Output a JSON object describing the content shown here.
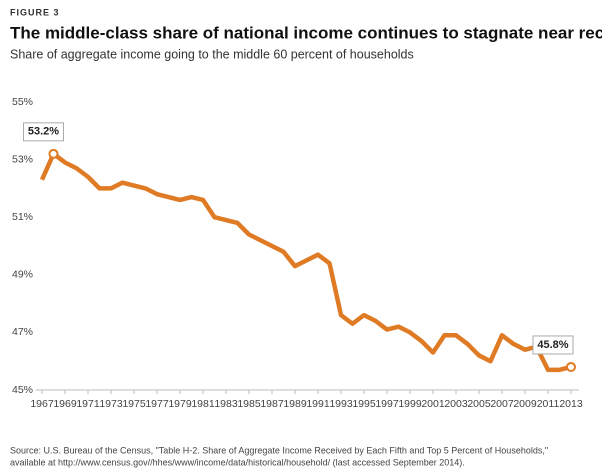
{
  "chart_data": {
    "type": "line",
    "figure_label": "FIGURE 3",
    "title": "The middle-class share of national income continues to stagnate near record lows",
    "subtitle": "Share of aggregate income going to the middle 60 percent of households",
    "source": [
      "Source: U.S. Bureau of the Census, \"Table H-2. Share of Aggregate Income Received by Each Fifth and Top 5 Percent of Households,\"",
      "available at http://www.census.gov//hhes/www/income/data/historical/household/ (last accessed September 2014)."
    ],
    "x": [
      1967,
      1968,
      1969,
      1970,
      1971,
      1972,
      1973,
      1974,
      1975,
      1976,
      1977,
      1978,
      1979,
      1980,
      1981,
      1982,
      1983,
      1984,
      1985,
      1986,
      1987,
      1988,
      1989,
      1990,
      1991,
      1992,
      1993,
      1994,
      1995,
      1996,
      1997,
      1998,
      1999,
      2000,
      2001,
      2002,
      2003,
      2004,
      2005,
      2006,
      2007,
      2008,
      2009,
      2010,
      2011,
      2012,
      2013
    ],
    "series": [
      {
        "color": "#e07b25",
        "values": [
          52.3,
          53.2,
          52.9,
          52.7,
          52.4,
          52.0,
          52.0,
          52.2,
          52.1,
          52.0,
          51.8,
          51.7,
          51.6,
          51.7,
          51.6,
          51.0,
          50.9,
          50.8,
          50.4,
          50.2,
          50.0,
          49.8,
          49.3,
          49.5,
          49.7,
          49.4,
          47.6,
          47.3,
          47.6,
          47.4,
          47.1,
          47.2,
          47.0,
          46.7,
          46.3,
          46.9,
          46.9,
          46.6,
          46.2,
          46.0,
          46.9,
          46.6,
          46.4,
          46.5,
          45.7,
          45.7,
          45.8
        ],
        "value_labels": [
          null,
          "53.2%",
          null,
          null,
          null,
          null,
          null,
          null,
          null,
          null,
          null,
          null,
          null,
          null,
          null,
          null,
          null,
          null,
          null,
          null,
          null,
          null,
          null,
          null,
          null,
          null,
          null,
          null,
          null,
          null,
          null,
          null,
          null,
          null,
          null,
          null,
          null,
          null,
          null,
          null,
          null,
          null,
          null,
          null,
          null,
          null,
          "45.8%"
        ]
      }
    ],
    "xlim": [
      1967,
      2013
    ],
    "xticks": [
      1967,
      1969,
      1971,
      1973,
      1975,
      1977,
      1979,
      1981,
      1983,
      1985,
      1987,
      1989,
      1991,
      1993,
      1995,
      1997,
      1999,
      2001,
      2003,
      2005,
      2007,
      2009,
      2011,
      2013
    ],
    "ylim": [
      45,
      55
    ],
    "yticks": [
      {
        "value": 45,
        "label": "45%"
      },
      {
        "value": 47,
        "label": "47%"
      },
      {
        "value": 49,
        "label": "49%"
      },
      {
        "value": 51,
        "label": "51%"
      },
      {
        "value": 53,
        "label": "53%"
      },
      {
        "value": 55,
        "label": "55%"
      }
    ],
    "grid": false
  }
}
